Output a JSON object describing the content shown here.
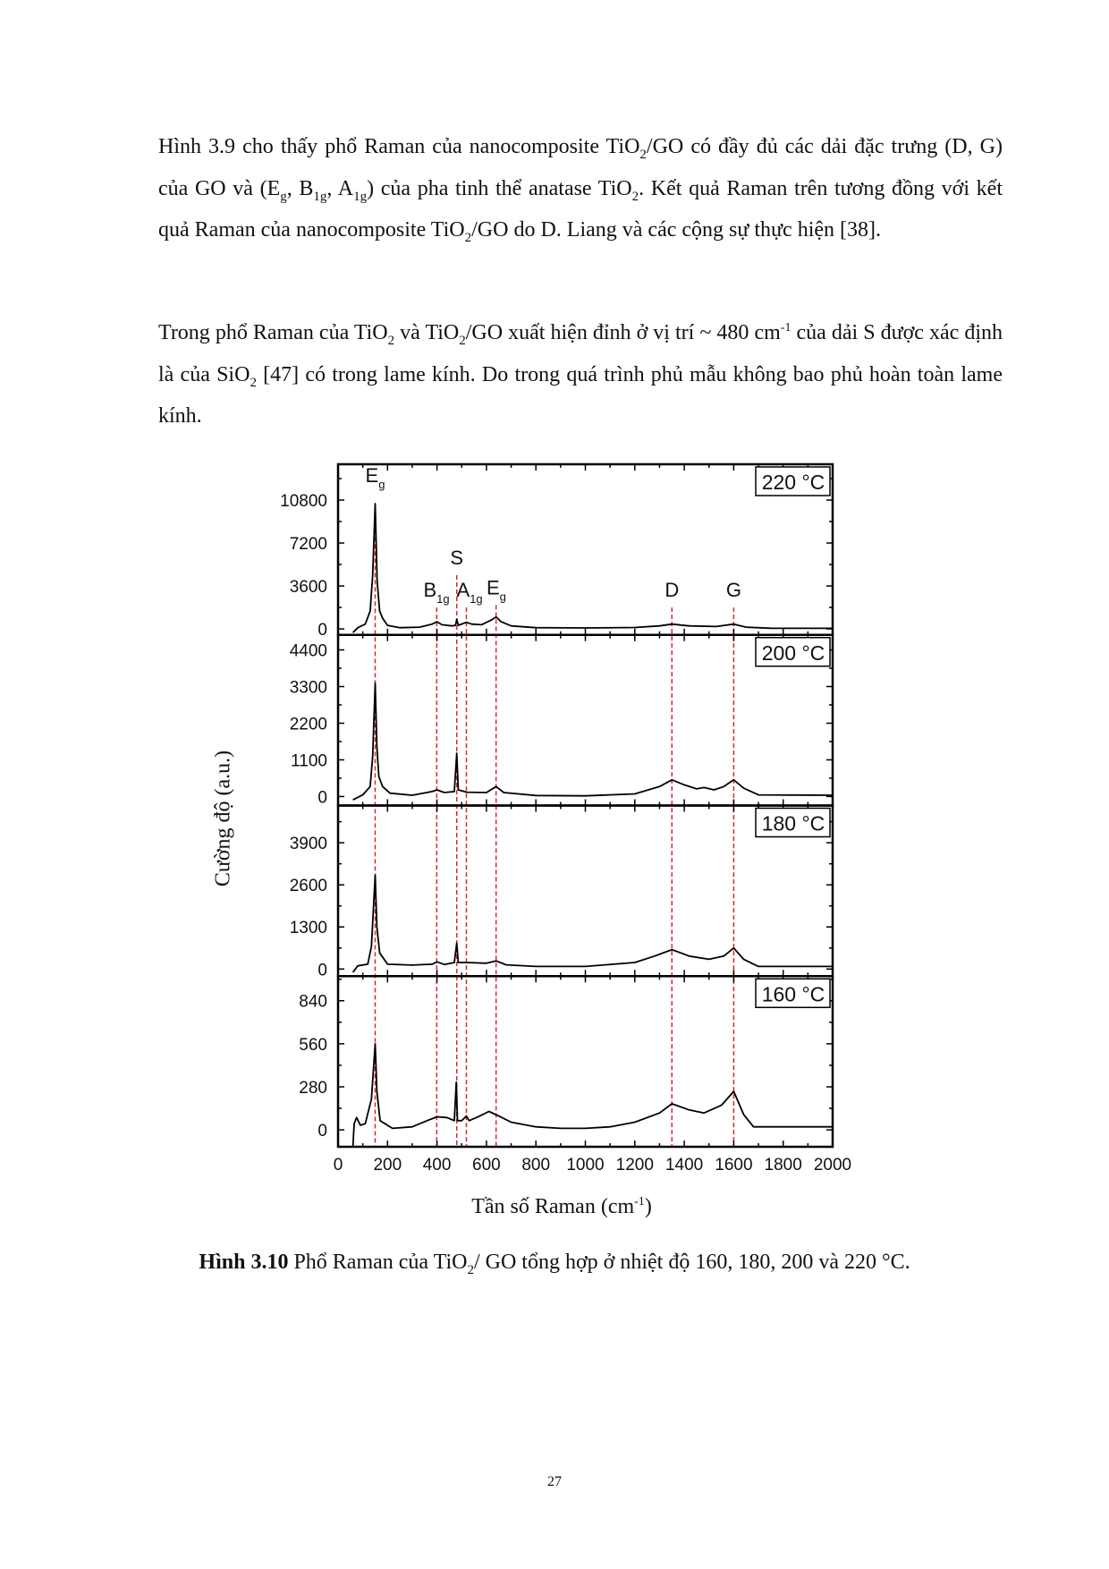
{
  "paragraph1": {
    "t1": "Hình 3.9 cho thấy phổ Raman của nanocomposite TiO",
    "s1": "2",
    "t2": "/GO có đầy đủ các dải đặc trưng (D, G) của GO và (E",
    "s2": "g",
    "t3": ", B",
    "s3": "1g",
    "t4": ", A",
    "s4": "1g",
    "t5": ") của pha tinh thể anatase TiO",
    "s5": "2",
    "t6": ". Kết quả Raman trên tương đồng với kết quả Raman của nanocomposite TiO",
    "s6": "2",
    "t7": "/GO do D. Liang và các cộng sự thực hiện [38]."
  },
  "paragraph2": {
    "t1": "Trong phổ Raman của TiO",
    "s1": "2",
    "t2": " và TiO",
    "s2": "2",
    "t3": "/GO xuất hiện đỉnh ở vị trí ~ 480 cm",
    "sup1": "-1",
    "t4": " của dải S được xác định là của SiO",
    "s3": "2",
    "t5": " [47] có trong lame kính. Do trong quá trình phủ mẫu không bao phủ hoàn toàn lame kính."
  },
  "figure": {
    "ylabel": "Cường độ (a.u.)",
    "xlabel_main": "Tần số Raman (cm",
    "xlabel_sup": "-1",
    "xlabel_end": ")",
    "caption_bold": "Hình 3.10",
    "caption_t1": " Phổ Raman của  TiO",
    "caption_sub": "2",
    "caption_t2": "/ GO tổng hợp ở  nhiệt độ 160, 180, 200 và 220 °C.",
    "page_number": "27"
  },
  "chart_data": {
    "type": "line",
    "layout": "4 stacked panels sharing x axis",
    "xlabel": "Tần số Raman (cm-1)",
    "ylabel": "Cường độ (a.u.)",
    "xlim": [
      0,
      2000
    ],
    "xticks": [
      0,
      200,
      400,
      600,
      800,
      1000,
      1200,
      1400,
      1600,
      1800,
      2000
    ],
    "line_color": "#000000",
    "reference_line_color": "#e0242a",
    "reference_lines_x": [
      150,
      399,
      480,
      519,
      639,
      1350,
      1600
    ],
    "peak_labels": [
      {
        "main": "E",
        "sub": "g",
        "x": 150,
        "y": 12300
      },
      {
        "main": "B",
        "sub": "1g",
        "x": 398,
        "y": 2700
      },
      {
        "main": "S",
        "sub": "",
        "x": 480,
        "y": 5400
      },
      {
        "main": "A",
        "sub": "1g",
        "x": 532,
        "y": 2700
      },
      {
        "main": "E",
        "sub": "g",
        "x": 640,
        "y": 2900
      },
      {
        "main": "D",
        "sub": "",
        "x": 1350,
        "y": 2700
      },
      {
        "main": "G",
        "sub": "",
        "x": 1600,
        "y": 2700
      }
    ],
    "panels": [
      {
        "label": "220 °C",
        "ylim": [
          -500,
          13800
        ],
        "yticks": [
          0,
          3600,
          7200,
          10800
        ],
        "points": [
          [
            60,
            -300
          ],
          [
            80,
            100
          ],
          [
            110,
            400
          ],
          [
            130,
            1500
          ],
          [
            140,
            4500
          ],
          [
            150,
            10500
          ],
          [
            158,
            4000
          ],
          [
            168,
            1500
          ],
          [
            180,
            900
          ],
          [
            200,
            300
          ],
          [
            250,
            100
          ],
          [
            330,
            150
          ],
          [
            380,
            400
          ],
          [
            400,
            600
          ],
          [
            420,
            350
          ],
          [
            460,
            250
          ],
          [
            475,
            300
          ],
          [
            480,
            800
          ],
          [
            486,
            300
          ],
          [
            505,
            450
          ],
          [
            519,
            550
          ],
          [
            540,
            400
          ],
          [
            580,
            350
          ],
          [
            620,
            750
          ],
          [
            639,
            1000
          ],
          [
            660,
            600
          ],
          [
            700,
            250
          ],
          [
            800,
            100
          ],
          [
            1000,
            80
          ],
          [
            1200,
            120
          ],
          [
            1300,
            250
          ],
          [
            1350,
            400
          ],
          [
            1420,
            250
          ],
          [
            1530,
            200
          ],
          [
            1600,
            400
          ],
          [
            1650,
            150
          ],
          [
            1750,
            60
          ],
          [
            2000,
            50
          ]
        ]
      },
      {
        "label": "200 °C",
        "ylim": [
          -270,
          4850
        ],
        "yticks": [
          0,
          1100,
          2200,
          3300,
          4400
        ],
        "points": [
          [
            60,
            -100
          ],
          [
            100,
            50
          ],
          [
            130,
            300
          ],
          [
            140,
            1200
          ],
          [
            150,
            3400
          ],
          [
            157,
            1500
          ],
          [
            165,
            600
          ],
          [
            180,
            300
          ],
          [
            210,
            100
          ],
          [
            300,
            40
          ],
          [
            380,
            150
          ],
          [
            400,
            200
          ],
          [
            430,
            120
          ],
          [
            470,
            150
          ],
          [
            480,
            1300
          ],
          [
            486,
            200
          ],
          [
            520,
            130
          ],
          [
            600,
            120
          ],
          [
            639,
            300
          ],
          [
            670,
            120
          ],
          [
            800,
            30
          ],
          [
            1000,
            20
          ],
          [
            1200,
            80
          ],
          [
            1300,
            300
          ],
          [
            1350,
            500
          ],
          [
            1400,
            350
          ],
          [
            1450,
            230
          ],
          [
            1480,
            270
          ],
          [
            1520,
            200
          ],
          [
            1560,
            300
          ],
          [
            1600,
            500
          ],
          [
            1640,
            250
          ],
          [
            1700,
            50
          ],
          [
            2000,
            40
          ]
        ]
      },
      {
        "label": "180 °C",
        "ylim": [
          -220,
          5050
        ],
        "yticks": [
          0,
          1300,
          2600,
          3900
        ],
        "points": [
          [
            60,
            -100
          ],
          [
            80,
            100
          ],
          [
            120,
            150
          ],
          [
            135,
            700
          ],
          [
            150,
            2900
          ],
          [
            157,
            1300
          ],
          [
            168,
            500
          ],
          [
            200,
            150
          ],
          [
            300,
            120
          ],
          [
            380,
            150
          ],
          [
            400,
            220
          ],
          [
            430,
            140
          ],
          [
            470,
            200
          ],
          [
            480,
            800
          ],
          [
            486,
            200
          ],
          [
            520,
            200
          ],
          [
            600,
            180
          ],
          [
            639,
            250
          ],
          [
            680,
            130
          ],
          [
            800,
            80
          ],
          [
            1000,
            80
          ],
          [
            1200,
            200
          ],
          [
            1280,
            400
          ],
          [
            1350,
            600
          ],
          [
            1420,
            400
          ],
          [
            1500,
            300
          ],
          [
            1560,
            400
          ],
          [
            1600,
            650
          ],
          [
            1640,
            300
          ],
          [
            1700,
            80
          ],
          [
            2000,
            80
          ]
        ]
      },
      {
        "label": "160 °C",
        "ylim": [
          -110,
          1000
        ],
        "yticks": [
          0,
          280,
          560,
          840
        ],
        "points": [
          [
            60,
            -110
          ],
          [
            65,
            40
          ],
          [
            75,
            80
          ],
          [
            90,
            30
          ],
          [
            110,
            40
          ],
          [
            135,
            200
          ],
          [
            150,
            560
          ],
          [
            157,
            250
          ],
          [
            170,
            60
          ],
          [
            220,
            10
          ],
          [
            300,
            20
          ],
          [
            360,
            60
          ],
          [
            400,
            85
          ],
          [
            440,
            80
          ],
          [
            470,
            60
          ],
          [
            478,
            310
          ],
          [
            483,
            60
          ],
          [
            500,
            60
          ],
          [
            519,
            90
          ],
          [
            530,
            60
          ],
          [
            560,
            80
          ],
          [
            610,
            120
          ],
          [
            650,
            90
          ],
          [
            700,
            50
          ],
          [
            800,
            20
          ],
          [
            900,
            10
          ],
          [
            1000,
            10
          ],
          [
            1100,
            20
          ],
          [
            1200,
            50
          ],
          [
            1300,
            110
          ],
          [
            1350,
            170
          ],
          [
            1420,
            130
          ],
          [
            1480,
            110
          ],
          [
            1550,
            160
          ],
          [
            1600,
            250
          ],
          [
            1640,
            100
          ],
          [
            1680,
            20
          ],
          [
            2000,
            20
          ]
        ]
      }
    ]
  }
}
